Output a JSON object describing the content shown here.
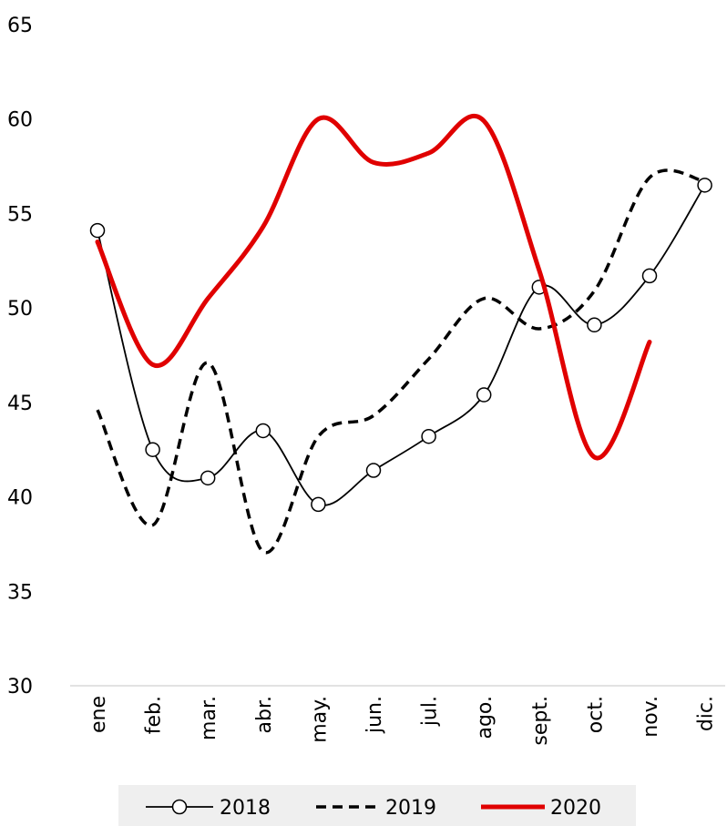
{
  "chart_data": {
    "type": "line",
    "categories": [
      "ene",
      "feb.",
      "mar.",
      "abr.",
      "may.",
      "jun.",
      "jul.",
      "ago.",
      "sept.",
      "oct.",
      "nov.",
      "dic."
    ],
    "ylim": [
      30,
      65
    ],
    "yticks": [
      "30",
      "35",
      "40",
      "45",
      "50",
      "55",
      "60",
      "65"
    ],
    "grid": false,
    "legend_position": "bottom",
    "series": [
      {
        "name": "2018",
        "style": "solid-markers",
        "color": "#000000",
        "values": [
          54.1,
          42.5,
          41.0,
          43.5,
          39.6,
          41.4,
          43.2,
          45.4,
          51.1,
          49.1,
          51.7,
          56.5
        ]
      },
      {
        "name": "2019",
        "style": "dashed",
        "color": "#000000",
        "values": [
          44.6,
          38.5,
          47.1,
          37.1,
          43.2,
          44.3,
          47.3,
          50.5,
          48.9,
          50.9,
          56.9,
          56.7
        ]
      },
      {
        "name": "2020",
        "style": "thick",
        "color": "#e00000",
        "values": [
          53.5,
          47.0,
          50.5,
          54.3,
          60.0,
          57.7,
          58.2,
          59.9,
          52.0,
          42.1,
          48.2,
          null
        ]
      }
    ]
  }
}
